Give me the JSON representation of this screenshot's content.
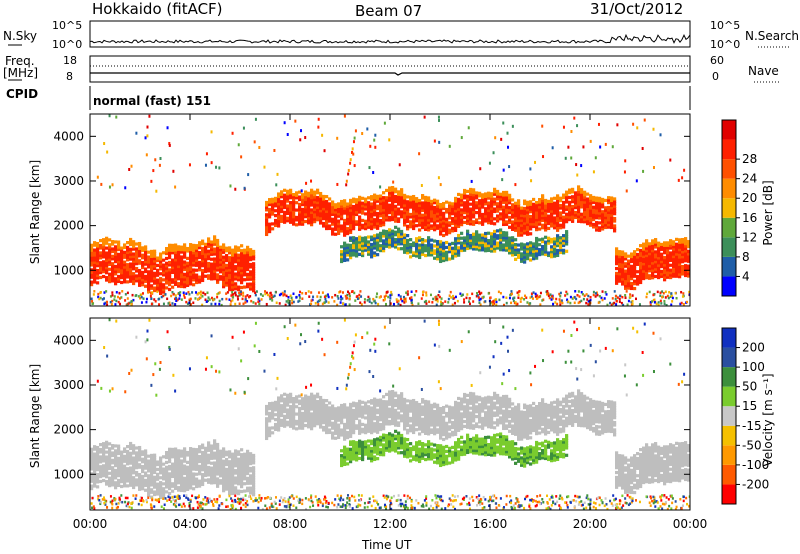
{
  "header": {
    "station": "Hokkaido (fitACF)",
    "beam": "Beam 07",
    "date": "31/Oct/2012"
  },
  "summary": {
    "nsky_label": "N.Sky",
    "nsearch_label": "N.Search",
    "nsky_ticks": [
      "10^5",
      "10^0"
    ],
    "nsearch_ticks": [
      "10^5",
      "10^0"
    ],
    "freq_label": "Freq.",
    "freq_unit": "[MHz]",
    "freq_ticks": [
      "18",
      "8"
    ],
    "nave_label": "Nave",
    "nave_ticks": [
      "60",
      "0"
    ],
    "cpid_label": "CPID",
    "cpid_value": "normal (fast) 151"
  },
  "colors": {
    "power_scale": [
      "#0000ff",
      "#1f5ea8",
      "#3c8f5a",
      "#5fa83a",
      "#f5b800",
      "#ff8c00",
      "#ff5000",
      "#ff2000",
      "#e00000"
    ],
    "velocity_scale": [
      "#ff0000",
      "#ff5a00",
      "#ff9900",
      "#f5c000",
      "#c8c8c8",
      "#7acc2e",
      "#3c8f3c",
      "#2a4fa0",
      "#1030c0"
    ],
    "ground_scatter": "#bebebe"
  },
  "chart_data": [
    {
      "type": "heatmap",
      "panel": "power",
      "ylabel": "Slant Range [km]",
      "ylim": [
        200,
        4500
      ],
      "yticks": [
        "1000",
        "2000",
        "3000",
        "4000"
      ],
      "xlim_hours": [
        0,
        24
      ],
      "colorbar_label": "Power [dB]",
      "colorbar_ticks": [
        "4",
        "8",
        "12",
        "16",
        "20",
        "24",
        "28"
      ],
      "bands": [
        {
          "region": "near range scatter",
          "x_range_hours": [
            0,
            6.5
          ],
          "y_range_km": [
            600,
            1600
          ],
          "value_db": 28
        },
        {
          "region": "main F-region band",
          "x_range_hours": [
            7,
            21
          ],
          "y_range_km": [
            1900,
            2700
          ],
          "value_db": 24
        },
        {
          "region": "lower green band",
          "x_range_hours": [
            10,
            19
          ],
          "y_range_km": [
            1300,
            1800
          ],
          "value_db": 12
        },
        {
          "region": "post-sunset near range",
          "x_range_hours": [
            21,
            24
          ],
          "y_range_km": [
            700,
            1600
          ],
          "value_db": 28
        }
      ]
    },
    {
      "type": "heatmap",
      "panel": "velocity",
      "ylabel": "Slant Range [km]",
      "ylim": [
        200,
        4500
      ],
      "yticks": [
        "1000",
        "2000",
        "3000",
        "4000"
      ],
      "xlabel": "Time UT",
      "xticks": [
        "00:00",
        "04:00",
        "08:00",
        "12:00",
        "16:00",
        "20:00",
        "00:00"
      ],
      "colorbar_label": "Velocity [m s⁻¹]",
      "colorbar_ticks": [
        "200",
        "100",
        "50",
        "15",
        "-15",
        "-50",
        "-100",
        "-200"
      ],
      "bands": [
        {
          "region": "ground scatter near range",
          "x_range_hours": [
            0,
            7
          ],
          "y_range_km": [
            600,
            1600
          ],
          "value_mps": 0
        },
        {
          "region": "ground scatter main band",
          "x_range_hours": [
            7,
            21
          ],
          "y_range_km": [
            1900,
            2700
          ],
          "value_mps": 0
        },
        {
          "region": "ionospheric band",
          "x_range_hours": [
            11,
            19
          ],
          "y_range_km": [
            1300,
            1800
          ],
          "value_mps": 40
        },
        {
          "region": "late ground scatter",
          "x_range_hours": [
            21,
            24
          ],
          "y_range_km": [
            700,
            1600
          ],
          "value_mps": 0
        }
      ]
    }
  ]
}
